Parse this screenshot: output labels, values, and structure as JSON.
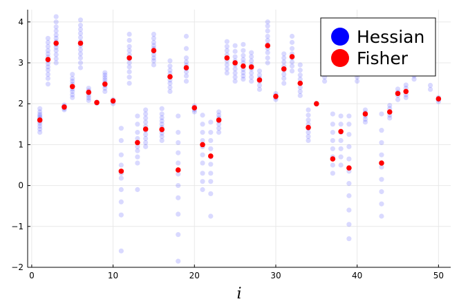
{
  "chart_data": {
    "type": "scatter",
    "title": "",
    "xlabel": "i",
    "ylabel": "",
    "xlim": [
      -0.5,
      51.5
    ],
    "ylim": [
      -2,
      4.3
    ],
    "xticks": [
      "0",
      "10",
      "20",
      "30",
      "40",
      "50"
    ],
    "xtick_values": [
      0,
      10,
      20,
      30,
      40,
      50
    ],
    "yticks": [
      "−2",
      "−1",
      "0",
      "1",
      "2",
      "3",
      "4"
    ],
    "ytick_values": [
      -2,
      -1,
      0,
      1,
      2,
      3,
      4
    ],
    "grid": true,
    "legend_position": "top-right",
    "series": [
      {
        "name": "Hessian",
        "color": "#0000ff",
        "marker_alpha": 0.15,
        "points": [
          {
            "x": 1,
            "y": [
              1.3,
              1.38,
              1.45,
              1.52,
              1.57,
              1.62,
              1.66,
              1.7,
              1.74,
              1.8,
              1.88
            ]
          },
          {
            "x": 2,
            "y": [
              2.48,
              2.62,
              2.72,
              2.82,
              2.9,
              2.98,
              3.06,
              3.14,
              3.22,
              3.3,
              3.4,
              3.5,
              3.6
            ]
          },
          {
            "x": 3,
            "y": [
              3.0,
              3.1,
              3.2,
              3.3,
              3.38,
              3.45,
              3.52,
              3.6,
              3.68,
              3.78,
              3.88,
              4.0,
              4.13
            ]
          },
          {
            "x": 4,
            "y": [
              1.85,
              1.88,
              1.91,
              1.94,
              1.97
            ]
          },
          {
            "x": 5,
            "y": [
              2.15,
              2.22,
              2.3,
              2.36,
              2.42,
              2.48,
              2.55,
              2.62,
              2.72
            ]
          },
          {
            "x": 6,
            "y": [
              2.88,
              3.0,
              3.12,
              3.22,
              3.32,
              3.42,
              3.52,
              3.62,
              3.72,
              3.82,
              3.92,
              4.05
            ]
          },
          {
            "x": 7,
            "y": [
              2.08,
              2.14,
              2.2,
              2.26,
              2.32,
              2.38
            ]
          },
          {
            "x": 8,
            "y": [
              2.01,
              2.04
            ]
          },
          {
            "x": 9,
            "y": [
              2.3,
              2.38,
              2.45,
              2.52,
              2.58,
              2.64,
              2.7,
              2.76
            ]
          },
          {
            "x": 10,
            "y": [
              2.0,
              2.05,
              2.1
            ]
          },
          {
            "x": 11,
            "y": [
              -1.6,
              -0.72,
              -0.4,
              -0.1,
              0.18,
              0.3,
              0.5,
              0.75,
              1.1,
              1.4
            ]
          },
          {
            "x": 12,
            "y": [
              2.5,
              2.65,
              2.78,
              2.9,
              3.0,
              3.1,
              3.2,
              3.3,
              3.4,
              3.55,
              3.7
            ]
          },
          {
            "x": 13,
            "y": [
              -0.1,
              0.55,
              0.7,
              0.85,
              0.95,
              1.05,
              1.15,
              1.3,
              1.5,
              1.7
            ]
          },
          {
            "x": 14,
            "y": [
              0.95,
              1.05,
              1.15,
              1.25,
              1.35,
              1.45,
              1.55,
              1.65,
              1.75,
              1.85
            ]
          },
          {
            "x": 15,
            "y": [
              2.95,
              3.05,
              3.12,
              3.2,
              3.28,
              3.35,
              3.42,
              3.5,
              3.6,
              3.7
            ]
          },
          {
            "x": 16,
            "y": [
              1.1,
              1.2,
              1.28,
              1.35,
              1.42,
              1.5,
              1.58,
              1.66,
              1.75,
              1.88
            ]
          },
          {
            "x": 17,
            "y": [
              2.3,
              2.4,
              2.5,
              2.58,
              2.66,
              2.74,
              2.82,
              2.92,
              3.05
            ]
          },
          {
            "x": 18,
            "y": [
              -1.85,
              -1.2,
              -0.7,
              -0.3,
              0.0,
              0.28,
              0.55,
              0.8,
              1.05,
              1.3,
              1.7
            ]
          },
          {
            "x": 19,
            "y": [
              2.55,
              2.68,
              2.78,
              2.86,
              2.94,
              3.02,
              3.12,
              3.35,
              3.65
            ]
          },
          {
            "x": 20,
            "y": [
              1.8,
              1.85,
              1.9,
              1.95
            ]
          },
          {
            "x": 21,
            "y": [
              -0.1,
              0.1,
              0.3,
              0.55,
              0.75,
              0.95,
              1.1,
              1.3,
              1.5,
              1.72
            ]
          },
          {
            "x": 22,
            "y": [
              -0.75,
              -0.2,
              0.1,
              0.3,
              0.52,
              0.7,
              0.9,
              1.1,
              1.3,
              1.55
            ]
          },
          {
            "x": 23,
            "y": [
              1.3,
              1.4,
              1.5,
              1.58,
              1.65,
              1.72,
              1.8
            ]
          },
          {
            "x": 24,
            "y": [
              2.75,
              2.85,
              2.95,
              3.05,
              3.12,
              3.2,
              3.3,
              3.4,
              3.52
            ]
          },
          {
            "x": 25,
            "y": [
              2.55,
              2.65,
              2.75,
              2.85,
              2.95,
              3.05,
              3.15,
              3.28,
              3.42
            ]
          },
          {
            "x": 26,
            "y": [
              2.6,
              2.68,
              2.76,
              2.84,
              2.92,
              3.0,
              3.08,
              3.18,
              3.3,
              3.45
            ]
          },
          {
            "x": 27,
            "y": [
              2.55,
              2.65,
              2.75,
              2.85,
              2.95,
              3.05,
              3.15,
              3.25
            ]
          },
          {
            "x": 28,
            "y": [
              2.35,
              2.45,
              2.55,
              2.62,
              2.7,
              2.8
            ]
          },
          {
            "x": 29,
            "y": [
              3.0,
              3.12,
              3.25,
              3.35,
              3.45,
              3.55,
              3.65,
              3.78,
              3.9,
              4.0
            ]
          },
          {
            "x": 30,
            "y": [
              2.1,
              2.15,
              2.2,
              2.25
            ]
          },
          {
            "x": 31,
            "y": [
              2.5,
              2.62,
              2.72,
              2.82,
              2.92,
              3.02,
              3.12,
              3.22
            ]
          },
          {
            "x": 32,
            "y": [
              2.8,
              2.92,
              3.02,
              3.12,
              3.22,
              3.35,
              3.5,
              3.65
            ]
          },
          {
            "x": 33,
            "y": [
              2.2,
              2.3,
              2.4,
              2.5,
              2.6,
              2.7,
              2.82,
              2.95
            ]
          },
          {
            "x": 34,
            "y": [
              1.1,
              1.2,
              1.3,
              1.4,
              1.5,
              1.6,
              1.72,
              1.85
            ]
          },
          {
            "x": 35,
            "y": [
              1.99,
              2.01
            ]
          },
          {
            "x": 36,
            "y": [
              2.55,
              2.65
            ]
          },
          {
            "x": 37,
            "y": [
              0.3,
              0.5,
              0.7,
              0.9,
              1.1,
              1.3,
              1.5,
              1.75
            ]
          },
          {
            "x": 38,
            "y": [
              0.5,
              0.7,
              0.9,
              1.1,
              1.3,
              1.5,
              1.7
            ]
          },
          {
            "x": 39,
            "y": [
              -1.3,
              -0.95,
              -0.6,
              -0.25,
              0.05,
              0.35,
              0.65,
              0.95,
              1.25,
              1.5,
              1.7
            ]
          },
          {
            "x": 40,
            "y": [
              2.55,
              2.65
            ]
          },
          {
            "x": 41,
            "y": [
              1.55,
              1.62,
              1.7,
              1.78,
              1.85
            ]
          },
          {
            "x": 43,
            "y": [
              -0.75,
              -0.45,
              -0.15,
              0.15,
              0.45,
              0.75,
              1.05,
              1.35,
              1.75
            ]
          },
          {
            "x": 44,
            "y": [
              1.65,
              1.72,
              1.8,
              1.88,
              1.96
            ]
          },
          {
            "x": 45,
            "y": [
              2.1,
              2.2,
              2.28,
              2.36
            ]
          },
          {
            "x": 46,
            "y": [
              2.15,
              2.22,
              2.3,
              2.38,
              2.46
            ]
          },
          {
            "x": 47,
            "y": [
              2.6,
              2.68
            ]
          },
          {
            "x": 49,
            "y": [
              2.35,
              2.45
            ]
          },
          {
            "x": 50,
            "y": [
              2.05,
              2.1,
              2.15
            ]
          }
        ]
      },
      {
        "name": "Fisher",
        "color": "#ff0000",
        "points": [
          {
            "x": 1,
            "y": 1.6
          },
          {
            "x": 2,
            "y": 3.08
          },
          {
            "x": 3,
            "y": 3.48
          },
          {
            "x": 4,
            "y": 1.92
          },
          {
            "x": 5,
            "y": 2.42
          },
          {
            "x": 6,
            "y": 3.48
          },
          {
            "x": 7,
            "y": 2.28
          },
          {
            "x": 8,
            "y": 2.03
          },
          {
            "x": 9,
            "y": 2.48
          },
          {
            "x": 10,
            "y": 2.07
          },
          {
            "x": 11,
            "y": 0.35
          },
          {
            "x": 12,
            "y": 3.12
          },
          {
            "x": 13,
            "y": 1.05
          },
          {
            "x": 14,
            "y": 1.38
          },
          {
            "x": 15,
            "y": 3.3
          },
          {
            "x": 16,
            "y": 1.37
          },
          {
            "x": 17,
            "y": 2.66
          },
          {
            "x": 18,
            "y": 0.38
          },
          {
            "x": 19,
            "y": 2.88
          },
          {
            "x": 20,
            "y": 1.9
          },
          {
            "x": 21,
            "y": 1.0
          },
          {
            "x": 22,
            "y": 0.72
          },
          {
            "x": 23,
            "y": 1.6
          },
          {
            "x": 24,
            "y": 3.12
          },
          {
            "x": 25,
            "y": 3.0
          },
          {
            "x": 26,
            "y": 2.92
          },
          {
            "x": 27,
            "y": 2.9
          },
          {
            "x": 28,
            "y": 2.58
          },
          {
            "x": 29,
            "y": 3.42
          },
          {
            "x": 30,
            "y": 2.18
          },
          {
            "x": 31,
            "y": 2.85
          },
          {
            "x": 32,
            "y": 3.15
          },
          {
            "x": 33,
            "y": 2.5
          },
          {
            "x": 34,
            "y": 1.42
          },
          {
            "x": 35,
            "y": 2.0
          },
          {
            "x": 37,
            "y": 0.65
          },
          {
            "x": 38,
            "y": 1.32
          },
          {
            "x": 39,
            "y": 0.43
          },
          {
            "x": 41,
            "y": 1.75
          },
          {
            "x": 43,
            "y": 0.55
          },
          {
            "x": 44,
            "y": 1.8
          },
          {
            "x": 45,
            "y": 2.25
          },
          {
            "x": 46,
            "y": 2.3
          },
          {
            "x": 50,
            "y": 2.12
          }
        ]
      }
    ]
  }
}
